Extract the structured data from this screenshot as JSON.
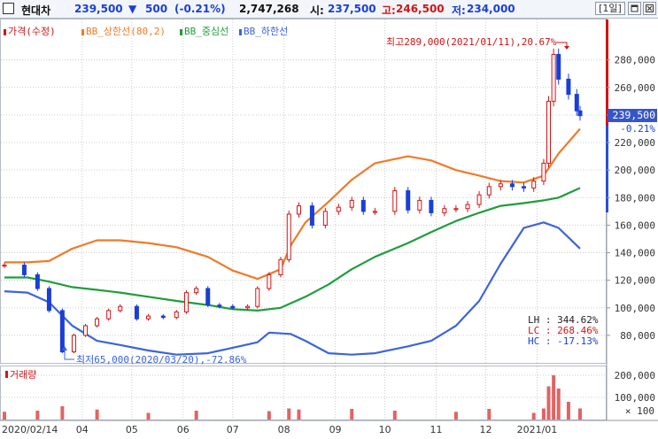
{
  "header": {
    "stock_name": "현대차",
    "price": "239,500",
    "change_arrow": "▼",
    "change": "500",
    "change_pct": "(-0.21%)",
    "volume": "2,747,268",
    "open_label": "시:",
    "open": "237,500",
    "high_label": "고:",
    "high": "246,500",
    "low_label": "저:",
    "low": "234,000",
    "period_button": "[1일]",
    "colors": {
      "down": "#1a3fd6",
      "up": "#d21414"
    }
  },
  "chart_data": {
    "type": "candlestick",
    "title": "현대차",
    "legend": [
      {
        "label": "가격(수정)",
        "color": "#d21414"
      },
      {
        "label": "BB_상한선(80,2)",
        "color": "#f07a28"
      },
      {
        "label": "BB_중심선",
        "color": "#1e9e3c"
      },
      {
        "label": "BB_하한선",
        "color": "#3b64dc"
      }
    ],
    "ylim": [
      60000,
      310000
    ],
    "y_ticks": [
      80000,
      100000,
      120000,
      140000,
      160000,
      180000,
      200000,
      220000,
      240000,
      260000,
      280000
    ],
    "y_tick_labels": [
      "80,000",
      "100,000",
      "120,000",
      "140,000",
      "160,000",
      "180,000",
      "200,000",
      "220,000",
      "240,000",
      "260,000",
      "280,000"
    ],
    "x_tick_labels": [
      "2020/02/14",
      "04",
      "05",
      "06",
      "07",
      "08",
      "09",
      "10",
      "11",
      "12",
      "2021/01"
    ],
    "x_tick_dates": [
      "2020-02-14",
      "2020-04-01",
      "2020-05-01",
      "2020-06-01",
      "2020-07-01",
      "2020-08-01",
      "2020-09-01",
      "2020-10-01",
      "2020-11-01",
      "2020-12-01",
      "2021-01-01"
    ],
    "price_points": [
      [
        "2020-02-14",
        131000
      ],
      [
        "2020-02-26",
        124000
      ],
      [
        "2020-03-05",
        114000
      ],
      [
        "2020-03-12",
        98000
      ],
      [
        "2020-03-20",
        68000
      ],
      [
        "2020-03-27",
        80000
      ],
      [
        "2020-04-03",
        87000
      ],
      [
        "2020-04-10",
        92000
      ],
      [
        "2020-04-17",
        98000
      ],
      [
        "2020-04-24",
        101000
      ],
      [
        "2020-05-04",
        92000
      ],
      [
        "2020-05-11",
        94000
      ],
      [
        "2020-05-20",
        93000
      ],
      [
        "2020-05-28",
        97000
      ],
      [
        "2020-06-03",
        111000
      ],
      [
        "2020-06-09",
        114000
      ],
      [
        "2020-06-16",
        102000
      ],
      [
        "2020-06-23",
        101000
      ],
      [
        "2020-07-01",
        100000
      ],
      [
        "2020-07-10",
        101000
      ],
      [
        "2020-07-16",
        114000
      ],
      [
        "2020-07-23",
        124000
      ],
      [
        "2020-07-30",
        135000
      ],
      [
        "2020-08-04",
        168000
      ],
      [
        "2020-08-10",
        174000
      ],
      [
        "2020-08-18",
        160000
      ],
      [
        "2020-08-26",
        170000
      ],
      [
        "2020-09-03",
        173000
      ],
      [
        "2020-09-11",
        178000
      ],
      [
        "2020-09-18",
        170000
      ],
      [
        "2020-09-25",
        170000
      ],
      [
        "2020-10-07",
        185000
      ],
      [
        "2020-10-15",
        171000
      ],
      [
        "2020-10-22",
        178000
      ],
      [
        "2020-10-29",
        169000
      ],
      [
        "2020-11-06",
        172000
      ],
      [
        "2020-11-13",
        172000
      ],
      [
        "2020-11-20",
        175000
      ],
      [
        "2020-11-27",
        182000
      ],
      [
        "2020-12-03",
        188000
      ],
      [
        "2020-12-10",
        190000
      ],
      [
        "2020-12-17",
        188000
      ],
      [
        "2020-12-24",
        187000
      ],
      [
        "2020-12-30",
        192000
      ],
      [
        "2021-01-05",
        205000
      ],
      [
        "2021-01-08",
        250000
      ],
      [
        "2021-01-11",
        284000
      ],
      [
        "2021-01-14",
        266000
      ],
      [
        "2021-01-20",
        255000
      ],
      [
        "2021-01-25",
        243000
      ],
      [
        "2021-01-27",
        239500
      ]
    ],
    "series": [
      {
        "name": "BB_상한선(80,2)",
        "color": "#f07a28",
        "points": [
          [
            "2020-02-14",
            133000
          ],
          [
            "2020-02-28",
            133000
          ],
          [
            "2020-03-12",
            134000
          ],
          [
            "2020-03-26",
            143000
          ],
          [
            "2020-04-10",
            149000
          ],
          [
            "2020-04-24",
            149000
          ],
          [
            "2020-05-11",
            147000
          ],
          [
            "2020-05-28",
            144000
          ],
          [
            "2020-06-16",
            137000
          ],
          [
            "2020-07-01",
            127000
          ],
          [
            "2020-07-16",
            121000
          ],
          [
            "2020-07-30",
            128000
          ],
          [
            "2020-08-05",
            145000
          ],
          [
            "2020-08-14",
            162000
          ],
          [
            "2020-08-28",
            177000
          ],
          [
            "2020-09-11",
            193000
          ],
          [
            "2020-09-25",
            205000
          ],
          [
            "2020-10-15",
            210000
          ],
          [
            "2020-10-29",
            207000
          ],
          [
            "2020-11-13",
            200000
          ],
          [
            "2020-11-27",
            196000
          ],
          [
            "2020-12-10",
            192000
          ],
          [
            "2020-12-24",
            191000
          ],
          [
            "2021-01-05",
            196000
          ],
          [
            "2021-01-14",
            212000
          ],
          [
            "2021-01-27",
            230000
          ]
        ]
      },
      {
        "name": "BB_중심선",
        "color": "#1e9e3c",
        "points": [
          [
            "2020-02-14",
            122000
          ],
          [
            "2020-02-28",
            122000
          ],
          [
            "2020-03-12",
            119000
          ],
          [
            "2020-03-26",
            115000
          ],
          [
            "2020-04-10",
            113000
          ],
          [
            "2020-04-24",
            111000
          ],
          [
            "2020-05-11",
            108000
          ],
          [
            "2020-05-28",
            105000
          ],
          [
            "2020-06-16",
            102000
          ],
          [
            "2020-07-01",
            99000
          ],
          [
            "2020-07-16",
            98000
          ],
          [
            "2020-07-30",
            100000
          ],
          [
            "2020-08-14",
            108000
          ],
          [
            "2020-08-28",
            117000
          ],
          [
            "2020-09-11",
            128000
          ],
          [
            "2020-09-25",
            137000
          ],
          [
            "2020-10-15",
            147000
          ],
          [
            "2020-10-29",
            155000
          ],
          [
            "2020-11-13",
            163000
          ],
          [
            "2020-11-27",
            169000
          ],
          [
            "2020-12-10",
            174000
          ],
          [
            "2020-12-24",
            176000
          ],
          [
            "2021-01-05",
            178000
          ],
          [
            "2021-01-14",
            180000
          ],
          [
            "2021-01-27",
            187000
          ]
        ]
      },
      {
        "name": "BB_하한선",
        "color": "#3b64dc",
        "points": [
          [
            "2020-02-14",
            112000
          ],
          [
            "2020-02-28",
            111000
          ],
          [
            "2020-03-12",
            104000
          ],
          [
            "2020-03-26",
            87000
          ],
          [
            "2020-04-10",
            76000
          ],
          [
            "2020-04-24",
            73000
          ],
          [
            "2020-05-11",
            69000
          ],
          [
            "2020-05-28",
            66000
          ],
          [
            "2020-06-16",
            67000
          ],
          [
            "2020-07-01",
            71000
          ],
          [
            "2020-07-16",
            75000
          ],
          [
            "2020-07-23",
            82000
          ],
          [
            "2020-08-05",
            81000
          ],
          [
            "2020-08-14",
            76000
          ],
          [
            "2020-08-28",
            67000
          ],
          [
            "2020-09-11",
            66000
          ],
          [
            "2020-09-25",
            67000
          ],
          [
            "2020-10-15",
            72000
          ],
          [
            "2020-10-29",
            76000
          ],
          [
            "2020-11-13",
            87000
          ],
          [
            "2020-11-27",
            105000
          ],
          [
            "2020-12-10",
            132000
          ],
          [
            "2020-12-24",
            158000
          ],
          [
            "2021-01-05",
            162000
          ],
          [
            "2021-01-14",
            158000
          ],
          [
            "2021-01-27",
            143000
          ]
        ]
      }
    ],
    "volume_points": [
      [
        "2020-02-14",
        35000
      ],
      [
        "2020-03-05",
        40000
      ],
      [
        "2020-03-20",
        60000
      ],
      [
        "2020-04-10",
        45000
      ],
      [
        "2020-05-11",
        30000
      ],
      [
        "2020-06-09",
        40000
      ],
      [
        "2020-07-23",
        38000
      ],
      [
        "2020-08-04",
        50000
      ],
      [
        "2020-08-10",
        45000
      ],
      [
        "2020-09-11",
        48000
      ],
      [
        "2020-10-07",
        40000
      ],
      [
        "2020-11-13",
        35000
      ],
      [
        "2020-12-03",
        48000
      ],
      [
        "2020-12-30",
        30000
      ],
      [
        "2021-01-05",
        50000
      ],
      [
        "2021-01-08",
        150000
      ],
      [
        "2021-01-11",
        200000
      ],
      [
        "2021-01-14",
        140000
      ],
      [
        "2021-01-20",
        80000
      ],
      [
        "2021-01-27",
        50000
      ]
    ],
    "volume_ylim": [
      0,
      240000
    ],
    "volume_ticks": [
      100000,
      200000
    ],
    "volume_tick_labels": [
      "100,000",
      "200,000"
    ],
    "volume_label": "거래량",
    "volume_unit": "× 100",
    "annotations": {
      "high": "최고289,000(2021/01/11),20.67%",
      "low": "최저65,000(2020/03/20),-72.86%",
      "last_price": "239,500",
      "last_change": "-0.21%",
      "lh": "LH : 344.62%",
      "lc": "LC : 268.46%",
      "hc": "HC : -17.13%"
    }
  }
}
